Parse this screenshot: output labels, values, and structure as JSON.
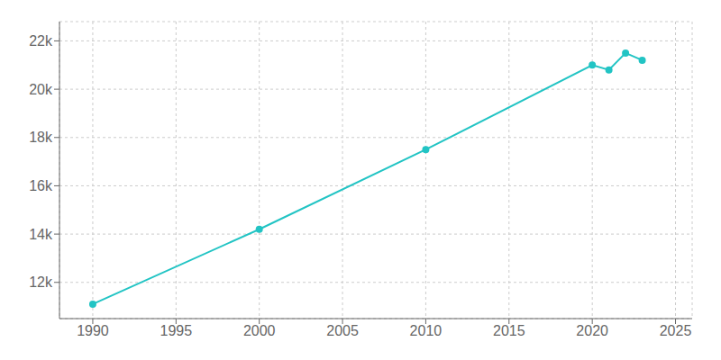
{
  "chart_data": {
    "type": "line",
    "x": [
      1990,
      2000,
      2010,
      2020,
      2021,
      2022,
      2023
    ],
    "values": [
      11100,
      14200,
      17500,
      21000,
      20800,
      21500,
      21200
    ],
    "color": "#22c4c4",
    "xlim": [
      1988,
      2026
    ],
    "ylim": [
      10500,
      22800
    ],
    "xticks": [
      1990,
      1995,
      2000,
      2005,
      2010,
      2015,
      2020,
      2025
    ],
    "yticks": [
      {
        "value": 12000,
        "label": "12k"
      },
      {
        "value": 14000,
        "label": "14k"
      },
      {
        "value": 16000,
        "label": "16k"
      },
      {
        "value": 18000,
        "label": "18k"
      },
      {
        "value": 20000,
        "label": "20k"
      },
      {
        "value": 22000,
        "label": "22k"
      }
    ],
    "grid": true,
    "marker": "circle"
  }
}
